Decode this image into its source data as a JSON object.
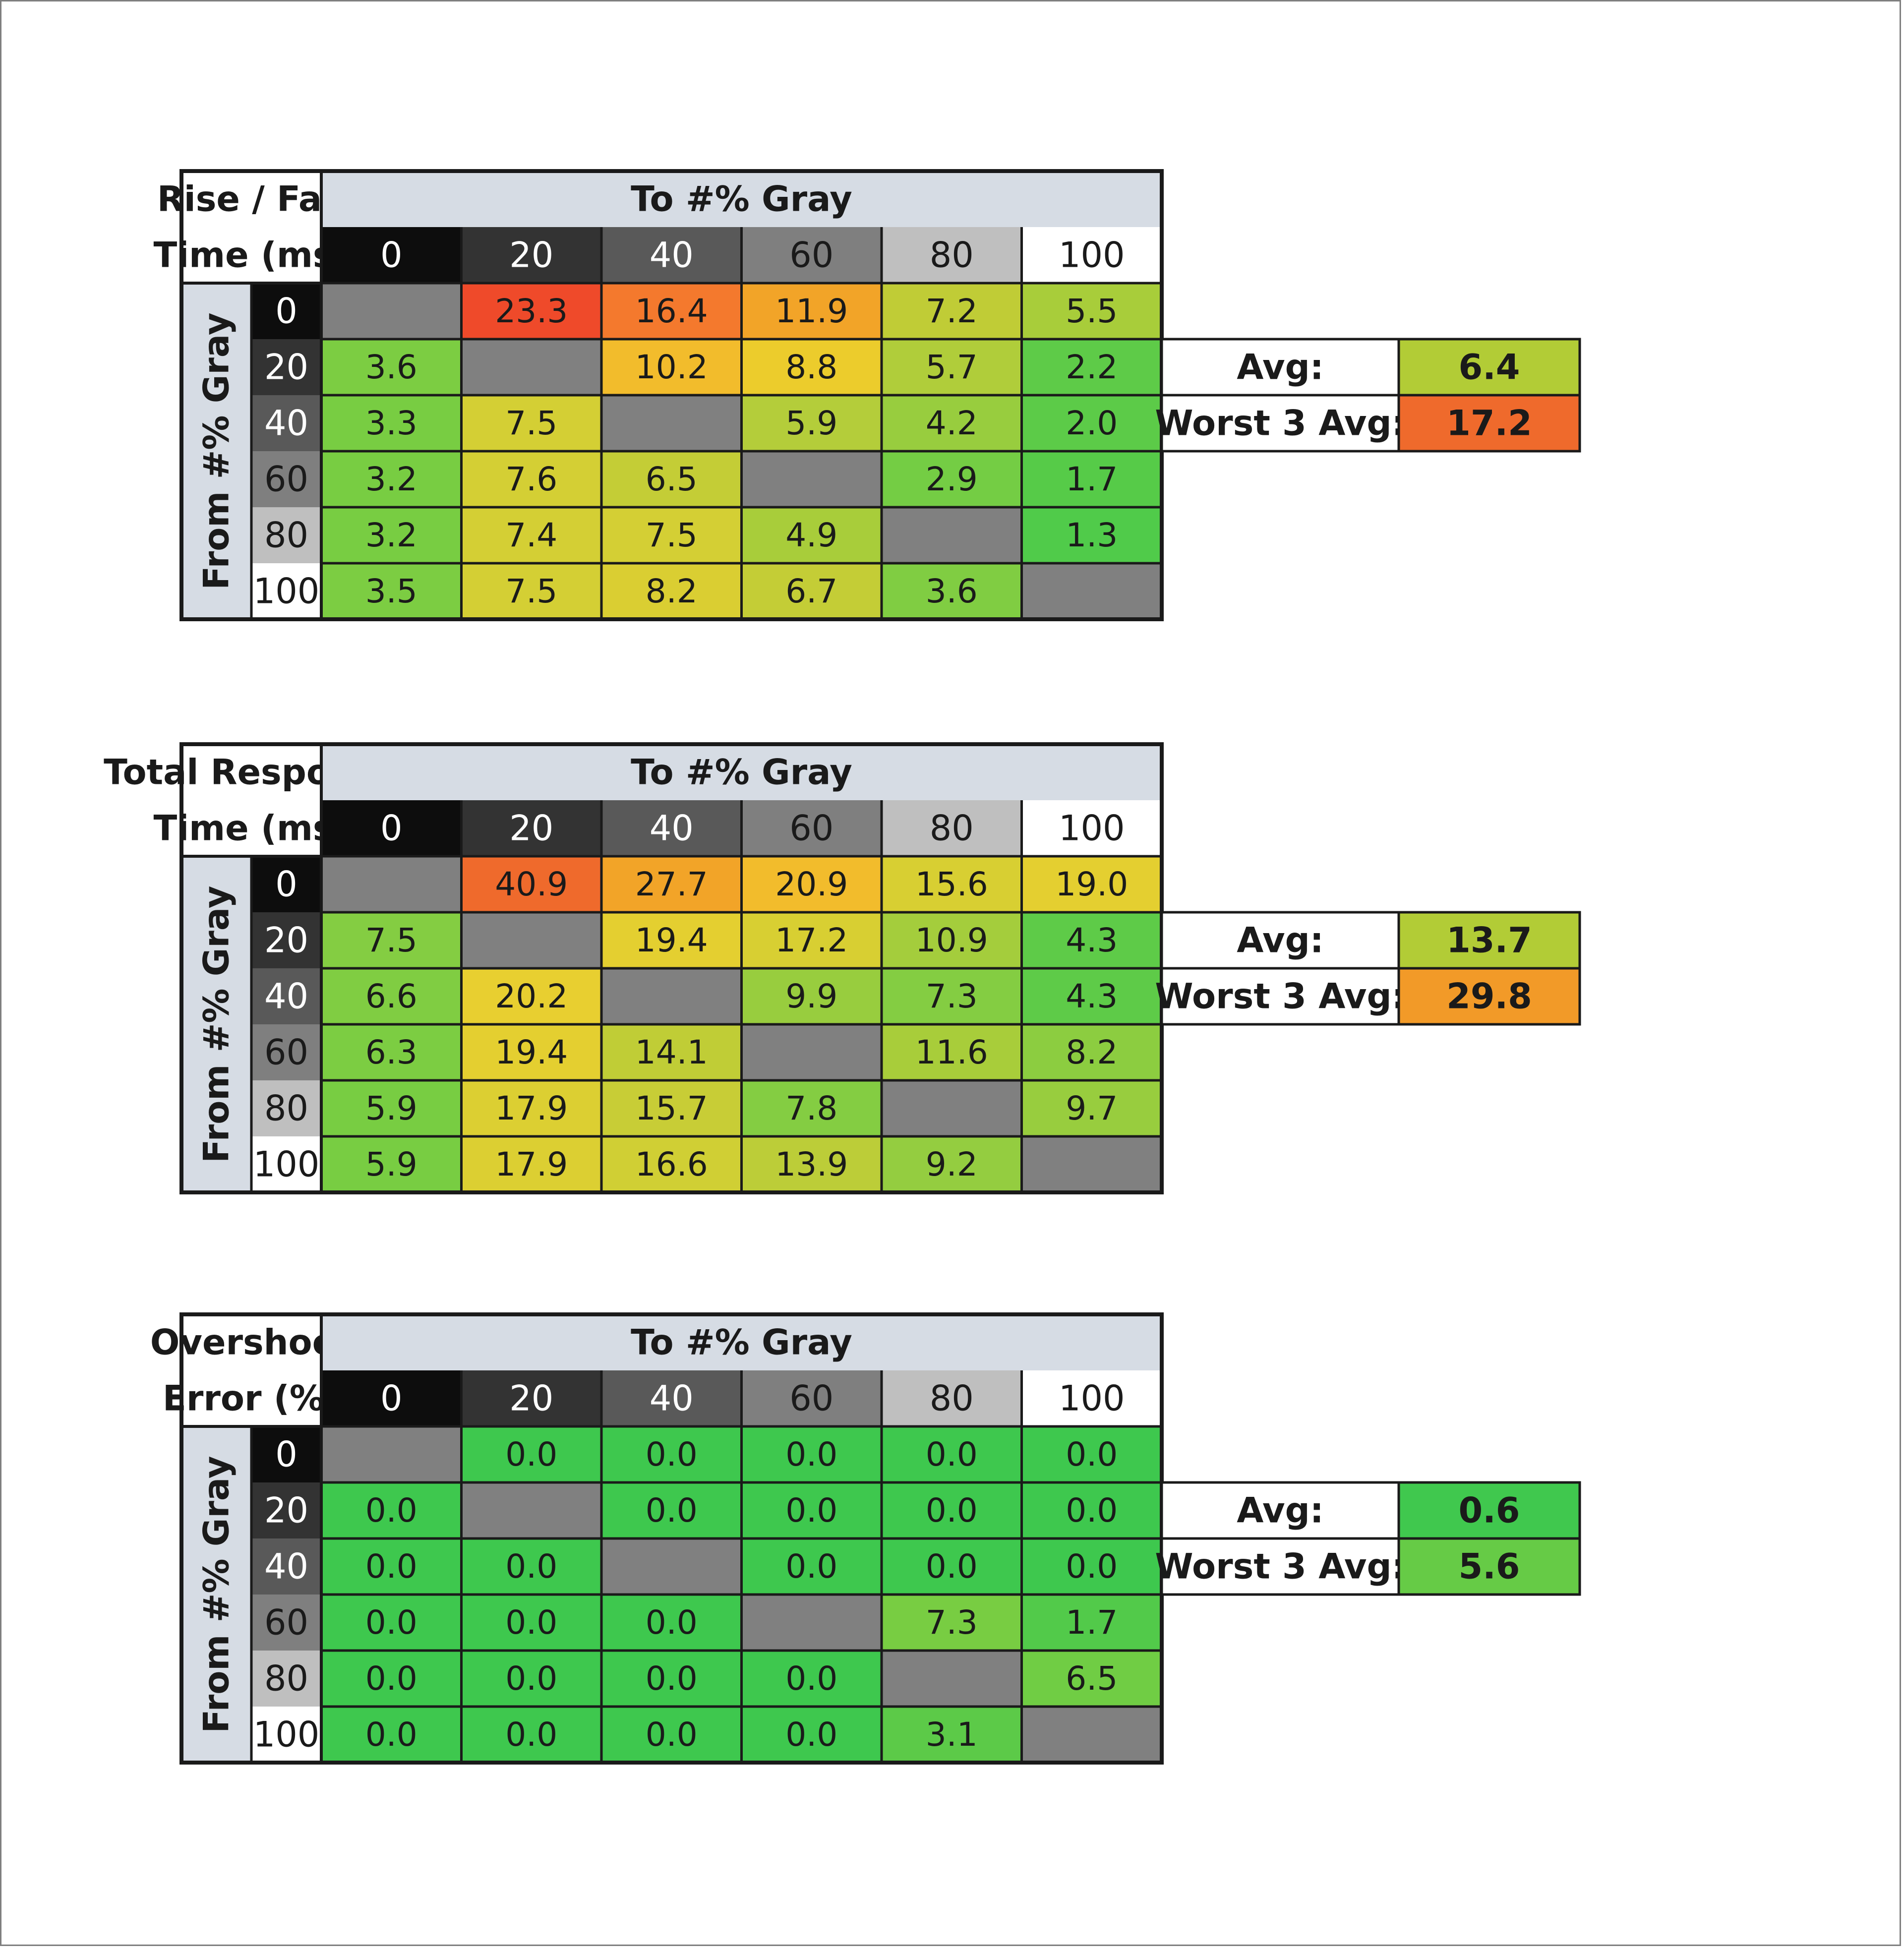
{
  "chart_data": [
    {
      "type": "heatmap",
      "title_lines": [
        "Rise / Fall",
        "Time (ms)"
      ],
      "col_header": "To #% Gray",
      "row_header": "From #% Gray",
      "categories": [
        "0",
        "20",
        "40",
        "60",
        "80",
        "100"
      ],
      "rows": [
        "0",
        "20",
        "40",
        "60",
        "80",
        "100"
      ],
      "values": [
        [
          null,
          23.3,
          16.4,
          11.9,
          7.2,
          5.5
        ],
        [
          3.6,
          null,
          10.2,
          8.8,
          5.7,
          2.2
        ],
        [
          3.3,
          7.5,
          null,
          5.9,
          4.2,
          2.0
        ],
        [
          3.2,
          7.6,
          6.5,
          null,
          2.9,
          1.7
        ],
        [
          3.2,
          7.4,
          7.5,
          4.9,
          null,
          1.3
        ],
        [
          3.5,
          7.5,
          8.2,
          6.7,
          3.6,
          null
        ]
      ],
      "labels": [
        [
          "",
          "23.3",
          "16.4",
          "11.9",
          "7.2",
          "5.5"
        ],
        [
          "3.6",
          "",
          "10.2",
          "8.8",
          "5.7",
          "2.2"
        ],
        [
          "3.3",
          "7.5",
          "",
          "5.9",
          "4.2",
          "2.0"
        ],
        [
          "3.2",
          "7.6",
          "6.5",
          "",
          "2.9",
          "1.7"
        ],
        [
          "3.2",
          "7.4",
          "7.5",
          "4.9",
          "",
          "1.3"
        ],
        [
          "3.5",
          "7.5",
          "8.2",
          "6.7",
          "3.6",
          ""
        ]
      ],
      "colors": [
        [
          "#808080",
          "#ef4a2a",
          "#f4792d",
          "#f2a428",
          "#c0cc36",
          "#a8cd3a"
        ],
        [
          "#7ccd42",
          "#808080",
          "#f2bc2c",
          "#eccc2c",
          "#b0cd3a",
          "#5ecb48"
        ],
        [
          "#78cd42",
          "#d4cf34",
          "#808080",
          "#b4cd3a",
          "#98cd3e",
          "#5ccb48"
        ],
        [
          "#78cd42",
          "#d4cf34",
          "#c4cd36",
          "#808080",
          "#74cd44",
          "#56cb48"
        ],
        [
          "#78cd42",
          "#d4cf34",
          "#d4cf34",
          "#a8cd3a",
          "#808080",
          "#50cb4a"
        ],
        [
          "#7ccd42",
          "#d4cf34",
          "#dace32",
          "#c4cd36",
          "#80cd42",
          "#808080"
        ]
      ],
      "summary": [
        {
          "label": "Avg:",
          "value": "6.4",
          "color": "#b2cc36"
        },
        {
          "label": "Worst 3 Avg:",
          "value": "17.2",
          "color": "#ef6a2c"
        }
      ]
    },
    {
      "type": "heatmap",
      "title_lines": [
        "Total Response",
        "Time (ms)"
      ],
      "col_header": "To #% Gray",
      "row_header": "From #% Gray",
      "categories": [
        "0",
        "20",
        "40",
        "60",
        "80",
        "100"
      ],
      "rows": [
        "0",
        "20",
        "40",
        "60",
        "80",
        "100"
      ],
      "values": [
        [
          null,
          40.9,
          27.7,
          20.9,
          15.6,
          19.0
        ],
        [
          7.5,
          null,
          19.4,
          17.2,
          10.9,
          4.3
        ],
        [
          6.6,
          20.2,
          null,
          9.9,
          7.3,
          4.3
        ],
        [
          6.3,
          19.4,
          14.1,
          null,
          11.6,
          8.2
        ],
        [
          5.9,
          17.9,
          15.7,
          7.8,
          null,
          9.7
        ],
        [
          5.9,
          17.9,
          16.6,
          13.9,
          9.2,
          null
        ]
      ],
      "labels": [
        [
          "",
          "40.9",
          "27.7",
          "20.9",
          "15.6",
          "19.0"
        ],
        [
          "7.5",
          "",
          "19.4",
          "17.2",
          "10.9",
          "4.3"
        ],
        [
          "6.6",
          "20.2",
          "",
          "9.9",
          "7.3",
          "4.3"
        ],
        [
          "6.3",
          "19.4",
          "14.1",
          "",
          "11.6",
          "8.2"
        ],
        [
          "5.9",
          "17.9",
          "15.7",
          "7.8",
          "",
          "9.7"
        ],
        [
          "5.9",
          "17.9",
          "16.6",
          "13.9",
          "9.2",
          ""
        ]
      ],
      "colors": [
        [
          "#808080",
          "#ef6a2c",
          "#f2a428",
          "#f2bc2c",
          "#d8cf32",
          "#e4cf30"
        ],
        [
          "#84cd42",
          "#808080",
          "#e4cf30",
          "#d8cf32",
          "#a4cd3c",
          "#5ecb48"
        ],
        [
          "#80cd42",
          "#e8cf30",
          "#808080",
          "#98cd3e",
          "#84cd42",
          "#5ecb48"
        ],
        [
          "#7ccd42",
          "#e4cf30",
          "#c0cd36",
          "#808080",
          "#a8cd3a",
          "#8ccd40"
        ],
        [
          "#78cd42",
          "#dccf32",
          "#c8cd36",
          "#84cd42",
          "#808080",
          "#98cd3e"
        ],
        [
          "#78cd42",
          "#dccf32",
          "#d0cf34",
          "#bccd38",
          "#94cd40",
          "#808080"
        ]
      ],
      "summary": [
        {
          "label": "Avg:",
          "value": "13.7",
          "color": "#b2cc36"
        },
        {
          "label": "Worst 3 Avg:",
          "value": "29.8",
          "color": "#f29a28"
        }
      ]
    },
    {
      "type": "heatmap",
      "title_lines": [
        "Overshoot",
        "Error (%)"
      ],
      "col_header": "To #% Gray",
      "row_header": "From #% Gray",
      "categories": [
        "0",
        "20",
        "40",
        "60",
        "80",
        "100"
      ],
      "rows": [
        "0",
        "20",
        "40",
        "60",
        "80",
        "100"
      ],
      "values": [
        [
          null,
          0.0,
          0.0,
          0.0,
          0.0,
          0.0
        ],
        [
          0.0,
          null,
          0.0,
          0.0,
          0.0,
          0.0
        ],
        [
          0.0,
          0.0,
          null,
          0.0,
          0.0,
          0.0
        ],
        [
          0.0,
          0.0,
          0.0,
          null,
          7.3,
          1.7
        ],
        [
          0.0,
          0.0,
          0.0,
          0.0,
          null,
          6.5
        ],
        [
          0.0,
          0.0,
          0.0,
          0.0,
          3.1,
          null
        ]
      ],
      "labels": [
        [
          "",
          "0.0",
          "0.0",
          "0.0",
          "0.0",
          "0.0"
        ],
        [
          "0.0",
          "",
          "0.0",
          "0.0",
          "0.0",
          "0.0"
        ],
        [
          "0.0",
          "0.0",
          "",
          "0.0",
          "0.0",
          "0.0"
        ],
        [
          "0.0",
          "0.0",
          "0.0",
          "",
          "7.3",
          "1.7"
        ],
        [
          "0.0",
          "0.0",
          "0.0",
          "0.0",
          "",
          "6.5"
        ],
        [
          "0.0",
          "0.0",
          "0.0",
          "0.0",
          "3.1",
          ""
        ]
      ],
      "colors": [
        [
          "#808080",
          "#3ec84e",
          "#3ec84e",
          "#3ec84e",
          "#3ec84e",
          "#3ec84e"
        ],
        [
          "#3ec84e",
          "#808080",
          "#3ec84e",
          "#3ec84e",
          "#3ec84e",
          "#3ec84e"
        ],
        [
          "#3ec84e",
          "#3ec84e",
          "#808080",
          "#3ec84e",
          "#3ec84e",
          "#3ec84e"
        ],
        [
          "#3ec84e",
          "#3ec84e",
          "#3ec84e",
          "#808080",
          "#78cd42",
          "#52ca4a"
        ],
        [
          "#3ec84e",
          "#3ec84e",
          "#3ec84e",
          "#3ec84e",
          "#808080",
          "#70cd44"
        ],
        [
          "#3ec84e",
          "#3ec84e",
          "#3ec84e",
          "#3ec84e",
          "#5cca48",
          "#808080"
        ]
      ],
      "summary": [
        {
          "label": "Avg:",
          "value": "0.6",
          "color": "#40c84e"
        },
        {
          "label": "Worst 3 Avg:",
          "value": "5.6",
          "color": "#66cb46"
        }
      ]
    }
  ],
  "header_colors": [
    "#0d0d0d",
    "#333333",
    "#595959",
    "#7f7f7f",
    "#bfbfbf",
    "#ffffff"
  ],
  "header_text_colors": [
    "#ffffff",
    "#ffffff",
    "#ffffff",
    "#1a1a1a",
    "#1a1a1a",
    "#1a1a1a"
  ],
  "label_bg": "#d6dce4",
  "empty_cell_color": "#808080"
}
